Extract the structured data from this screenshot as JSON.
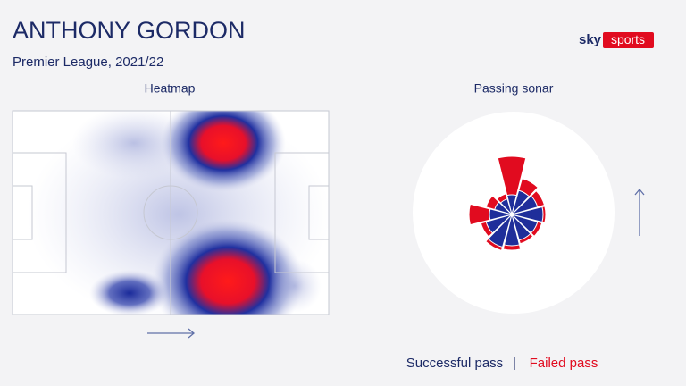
{
  "header": {
    "title": "ANTHONY GORDON",
    "subtitle": "Premier League, 2021/22"
  },
  "logo": {
    "sky": "sky",
    "sports": "sports"
  },
  "heatmap": {
    "label": "Heatmap"
  },
  "sonar": {
    "label": "Passing sonar"
  },
  "legend": {
    "successful": "Successful pass",
    "separator": "|",
    "failed": "Failed pass"
  }
}
